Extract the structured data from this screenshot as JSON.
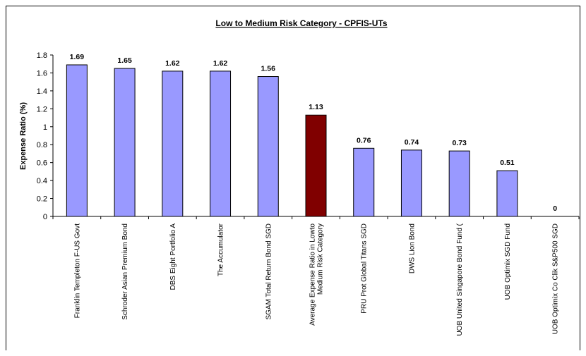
{
  "chart_data": {
    "type": "bar",
    "title": "Low to Medium Risk Category - CPFIS-UTs",
    "xlabel": "",
    "ylabel": "Expense Ratio (%)",
    "ylim": [
      0,
      1.8
    ],
    "yticks": [
      "0",
      "0.2",
      "0.4",
      "0.6",
      "0.8",
      "1",
      "1.2",
      "1.4",
      "1.6",
      "1.8"
    ],
    "grid": false,
    "categories": [
      [
        "Franklin Templeton F-US Govt"
      ],
      [
        "Schroder Asian Premium Bond"
      ],
      [
        "DBS Eight Portfolio A"
      ],
      [
        "The Accumulator"
      ],
      [
        "SGAM Total Return Bond SGD"
      ],
      [
        "Average Expense Ratio in Lowto",
        "Medium Risk Category"
      ],
      [
        "PRU Prot Global Titans SGD"
      ],
      [
        "DWS Lion Bond"
      ],
      [
        "UOB United Singapore Bond Fund ("
      ],
      [
        "UOB Optimix SGD Fund"
      ],
      [
        "UOB Optimix Co Clik S&P500 SGD"
      ]
    ],
    "values": [
      1.69,
      1.65,
      1.62,
      1.62,
      1.56,
      1.13,
      0.76,
      0.74,
      0.73,
      0.51,
      0
    ],
    "value_labels": [
      "1.69",
      "1.65",
      "1.62",
      "1.62",
      "1.56",
      "1.13",
      "0.76",
      "0.74",
      "0.73",
      "0.51",
      "0"
    ],
    "highlight_index": 5,
    "colors": {
      "bar": "#9999ff",
      "highlight": "#800000",
      "outline": "#000000"
    }
  }
}
